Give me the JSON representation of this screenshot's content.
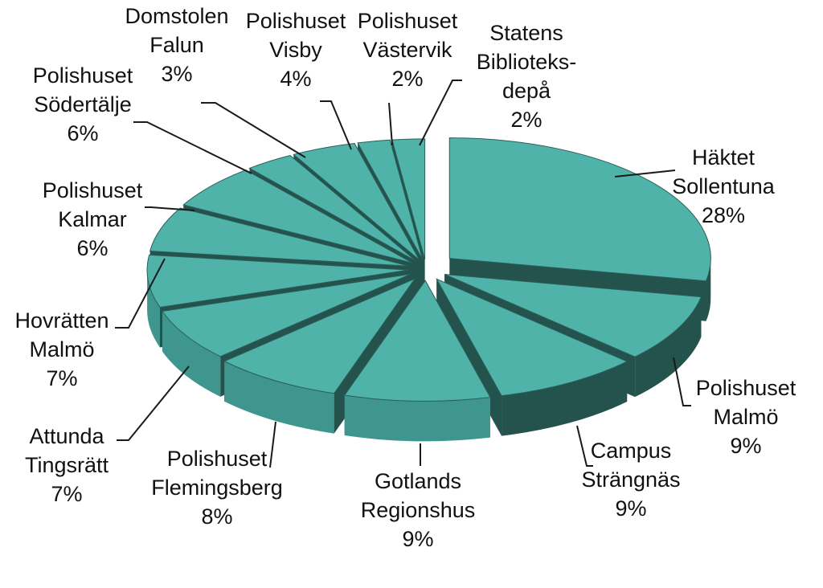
{
  "chart_data": {
    "type": "pie",
    "style": "3d-exploded",
    "colors": {
      "top": "#50b3aa",
      "side": "#3f968e",
      "side_dark": "#24524d",
      "separator": "#2a5f59"
    },
    "slices": [
      {
        "name": "Häktet Sollentuna",
        "lines": [
          "Häktet",
          "Sollentuna"
        ],
        "value": 28,
        "pct_label": "28%"
      },
      {
        "name": "Polishuset Malmö",
        "lines": [
          "Polishuset",
          "Malmö"
        ],
        "value": 9,
        "pct_label": "9%"
      },
      {
        "name": "Campus Strängnäs",
        "lines": [
          "Campus",
          "Strängnäs"
        ],
        "value": 9,
        "pct_label": "9%"
      },
      {
        "name": "Gotlands Regionshus",
        "lines": [
          "Gotlands",
          "Regionshus"
        ],
        "value": 9,
        "pct_label": "9%"
      },
      {
        "name": "Polishuset Flemingsberg",
        "lines": [
          "Polishuset",
          "Flemingsberg"
        ],
        "value": 8,
        "pct_label": "8%"
      },
      {
        "name": "Attunda Tingsrätt",
        "lines": [
          "Attunda",
          "Tingsrätt"
        ],
        "value": 7,
        "pct_label": "7%"
      },
      {
        "name": "Hovrätten Malmö",
        "lines": [
          "Hovrätten",
          "Malmö"
        ],
        "value": 7,
        "pct_label": "7%"
      },
      {
        "name": "Polishuset Kalmar",
        "lines": [
          "Polishuset",
          "Kalmar"
        ],
        "value": 6,
        "pct_label": "6%"
      },
      {
        "name": "Polishuset Södertälje",
        "lines": [
          "Polishuset",
          "Södertälje"
        ],
        "value": 6,
        "pct_label": "6%"
      },
      {
        "name": "Domstolen Falun",
        "lines": [
          "Domstolen",
          "Falun"
        ],
        "value": 3,
        "pct_label": "3%"
      },
      {
        "name": "Polishuset Visby",
        "lines": [
          "Polishuset",
          "Visby"
        ],
        "value": 4,
        "pct_label": "4%"
      },
      {
        "name": "Polishuset Västervik",
        "lines": [
          "Polishuset",
          "Västervik"
        ],
        "value": 2,
        "pct_label": "2%"
      },
      {
        "name": "Statens Biblioteksdepå",
        "lines": [
          "Statens",
          "Biblioteks-",
          "depå"
        ],
        "value": 2,
        "pct_label": "2%"
      }
    ]
  }
}
